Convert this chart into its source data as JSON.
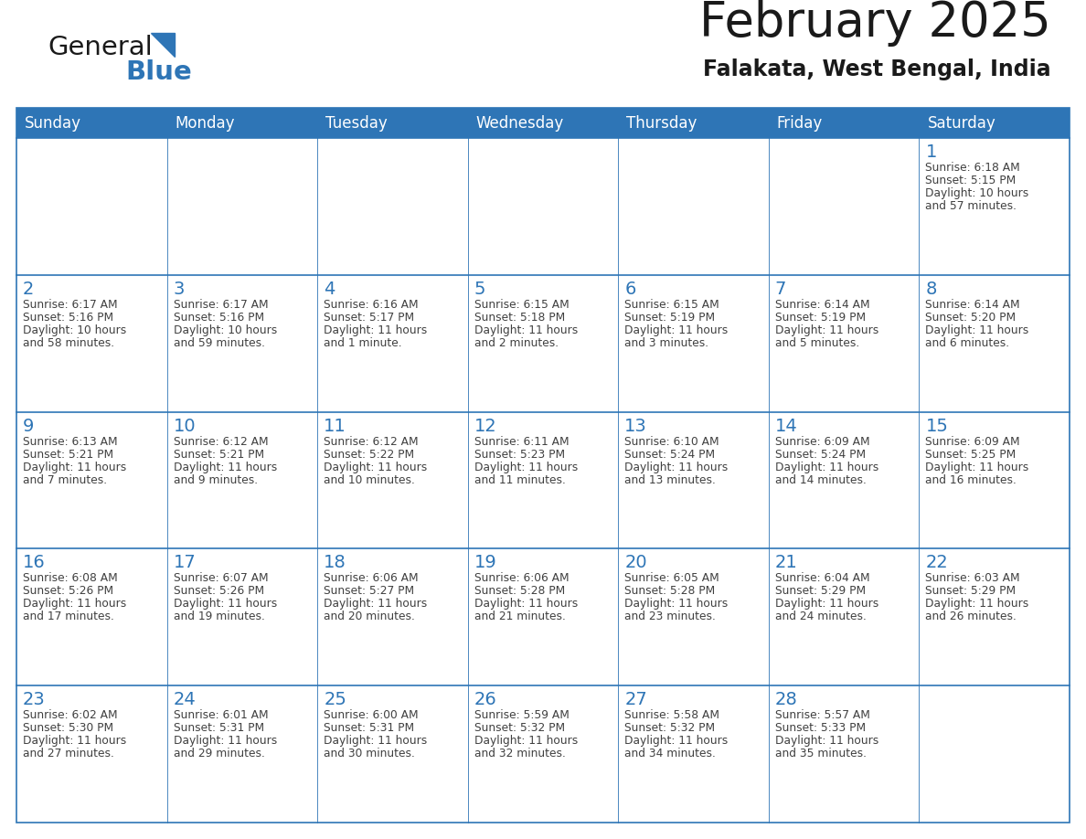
{
  "title": "February 2025",
  "subtitle": "Falakata, West Bengal, India",
  "header_bg": "#2E75B6",
  "header_text_color": "#FFFFFF",
  "days_of_week": [
    "Sunday",
    "Monday",
    "Tuesday",
    "Wednesday",
    "Thursday",
    "Friday",
    "Saturday"
  ],
  "border_color": "#2E75B6",
  "day_num_color": "#2E75B6",
  "info_text_color": "#404040",
  "calendar": [
    [
      null,
      null,
      null,
      null,
      null,
      null,
      {
        "day": 1,
        "sunrise": "6:18 AM",
        "sunset": "5:15 PM",
        "daylight_line1": "10 hours",
        "daylight_line2": "and 57 minutes."
      }
    ],
    [
      {
        "day": 2,
        "sunrise": "6:17 AM",
        "sunset": "5:16 PM",
        "daylight_line1": "10 hours",
        "daylight_line2": "and 58 minutes."
      },
      {
        "day": 3,
        "sunrise": "6:17 AM",
        "sunset": "5:16 PM",
        "daylight_line1": "10 hours",
        "daylight_line2": "and 59 minutes."
      },
      {
        "day": 4,
        "sunrise": "6:16 AM",
        "sunset": "5:17 PM",
        "daylight_line1": "11 hours",
        "daylight_line2": "and 1 minute."
      },
      {
        "day": 5,
        "sunrise": "6:15 AM",
        "sunset": "5:18 PM",
        "daylight_line1": "11 hours",
        "daylight_line2": "and 2 minutes."
      },
      {
        "day": 6,
        "sunrise": "6:15 AM",
        "sunset": "5:19 PM",
        "daylight_line1": "11 hours",
        "daylight_line2": "and 3 minutes."
      },
      {
        "day": 7,
        "sunrise": "6:14 AM",
        "sunset": "5:19 PM",
        "daylight_line1": "11 hours",
        "daylight_line2": "and 5 minutes."
      },
      {
        "day": 8,
        "sunrise": "6:14 AM",
        "sunset": "5:20 PM",
        "daylight_line1": "11 hours",
        "daylight_line2": "and 6 minutes."
      }
    ],
    [
      {
        "day": 9,
        "sunrise": "6:13 AM",
        "sunset": "5:21 PM",
        "daylight_line1": "11 hours",
        "daylight_line2": "and 7 minutes."
      },
      {
        "day": 10,
        "sunrise": "6:12 AM",
        "sunset": "5:21 PM",
        "daylight_line1": "11 hours",
        "daylight_line2": "and 9 minutes."
      },
      {
        "day": 11,
        "sunrise": "6:12 AM",
        "sunset": "5:22 PM",
        "daylight_line1": "11 hours",
        "daylight_line2": "and 10 minutes."
      },
      {
        "day": 12,
        "sunrise": "6:11 AM",
        "sunset": "5:23 PM",
        "daylight_line1": "11 hours",
        "daylight_line2": "and 11 minutes."
      },
      {
        "day": 13,
        "sunrise": "6:10 AM",
        "sunset": "5:24 PM",
        "daylight_line1": "11 hours",
        "daylight_line2": "and 13 minutes."
      },
      {
        "day": 14,
        "sunrise": "6:09 AM",
        "sunset": "5:24 PM",
        "daylight_line1": "11 hours",
        "daylight_line2": "and 14 minutes."
      },
      {
        "day": 15,
        "sunrise": "6:09 AM",
        "sunset": "5:25 PM",
        "daylight_line1": "11 hours",
        "daylight_line2": "and 16 minutes."
      }
    ],
    [
      {
        "day": 16,
        "sunrise": "6:08 AM",
        "sunset": "5:26 PM",
        "daylight_line1": "11 hours",
        "daylight_line2": "and 17 minutes."
      },
      {
        "day": 17,
        "sunrise": "6:07 AM",
        "sunset": "5:26 PM",
        "daylight_line1": "11 hours",
        "daylight_line2": "and 19 minutes."
      },
      {
        "day": 18,
        "sunrise": "6:06 AM",
        "sunset": "5:27 PM",
        "daylight_line1": "11 hours",
        "daylight_line2": "and 20 minutes."
      },
      {
        "day": 19,
        "sunrise": "6:06 AM",
        "sunset": "5:28 PM",
        "daylight_line1": "11 hours",
        "daylight_line2": "and 21 minutes."
      },
      {
        "day": 20,
        "sunrise": "6:05 AM",
        "sunset": "5:28 PM",
        "daylight_line1": "11 hours",
        "daylight_line2": "and 23 minutes."
      },
      {
        "day": 21,
        "sunrise": "6:04 AM",
        "sunset": "5:29 PM",
        "daylight_line1": "11 hours",
        "daylight_line2": "and 24 minutes."
      },
      {
        "day": 22,
        "sunrise": "6:03 AM",
        "sunset": "5:29 PM",
        "daylight_line1": "11 hours",
        "daylight_line2": "and 26 minutes."
      }
    ],
    [
      {
        "day": 23,
        "sunrise": "6:02 AM",
        "sunset": "5:30 PM",
        "daylight_line1": "11 hours",
        "daylight_line2": "and 27 minutes."
      },
      {
        "day": 24,
        "sunrise": "6:01 AM",
        "sunset": "5:31 PM",
        "daylight_line1": "11 hours",
        "daylight_line2": "and 29 minutes."
      },
      {
        "day": 25,
        "sunrise": "6:00 AM",
        "sunset": "5:31 PM",
        "daylight_line1": "11 hours",
        "daylight_line2": "and 30 minutes."
      },
      {
        "day": 26,
        "sunrise": "5:59 AM",
        "sunset": "5:32 PM",
        "daylight_line1": "11 hours",
        "daylight_line2": "and 32 minutes."
      },
      {
        "day": 27,
        "sunrise": "5:58 AM",
        "sunset": "5:32 PM",
        "daylight_line1": "11 hours",
        "daylight_line2": "and 34 minutes."
      },
      {
        "day": 28,
        "sunrise": "5:57 AM",
        "sunset": "5:33 PM",
        "daylight_line1": "11 hours",
        "daylight_line2": "and 35 minutes."
      },
      null
    ]
  ],
  "logo_text_general": "General",
  "logo_text_blue": "Blue",
  "logo_color_general": "#1a1a1a",
  "logo_color_blue": "#2E75B6"
}
